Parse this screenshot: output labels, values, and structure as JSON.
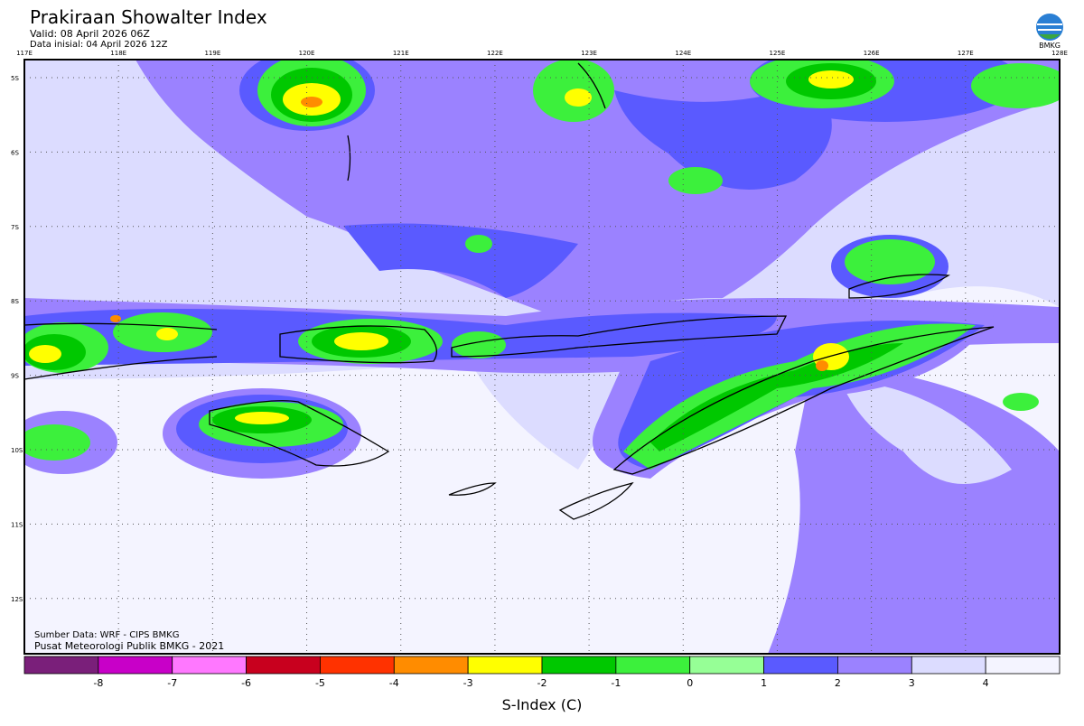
{
  "header": {
    "title": "Prakiraan Showalter Index",
    "valid": "Valid: 08 April 2026 06Z",
    "initial": "Data inisial: 04 April 2026 12Z",
    "logo": "BMKG"
  },
  "map": {
    "lon_labels": [
      "117E",
      "118E",
      "119E",
      "120E",
      "121E",
      "122E",
      "123E",
      "124E",
      "125E",
      "126E",
      "127E",
      "128E"
    ],
    "lat_labels": [
      "5S",
      "6S",
      "7S",
      "8S",
      "9S",
      "10S",
      "11S",
      "12S"
    ],
    "source": "Sumber Data: WRF - CIPS BMKG",
    "credit": "Pusat Meteorologi Publik BMKG - 2021"
  },
  "colorbar": {
    "colors": [
      "#7a1f7a",
      "#c800c8",
      "#ff78ff",
      "#c8001e",
      "#ff3200",
      "#ff8c00",
      "#ffff00",
      "#00c800",
      "#3cf03c",
      "#96ff96",
      "#5a5aff",
      "#9b82ff",
      "#dcdcff",
      "#f4f4ff"
    ],
    "ticks": [
      -8,
      -7,
      -6,
      -5,
      -4,
      -3,
      -2,
      -1,
      0,
      1,
      2,
      3,
      4
    ],
    "label": "S-Index (C)"
  }
}
